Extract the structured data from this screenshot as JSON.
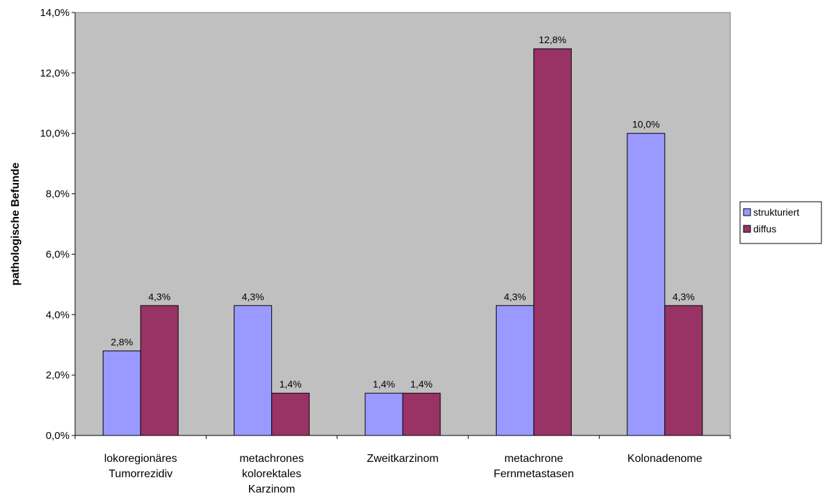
{
  "chart_data": {
    "type": "bar",
    "title": "",
    "xlabel": "",
    "ylabel": "pathologische Befunde",
    "ylim": [
      0,
      14
    ],
    "yticks": [
      "0,0%",
      "2,0%",
      "4,0%",
      "6,0%",
      "8,0%",
      "10,0%",
      "12,0%",
      "14,0%"
    ],
    "categories": [
      [
        "lokoregionäres",
        "Tumorrezidiv"
      ],
      [
        "metachrones",
        "kolorektales",
        "Karzinom"
      ],
      [
        "Zweitkarzinom"
      ],
      [
        "metachrone",
        "Fernmetastasen"
      ],
      [
        "Kolonadenome"
      ]
    ],
    "series": [
      {
        "name": "strukturiert",
        "color": "#9999ff",
        "values": [
          2.8,
          4.3,
          1.4,
          4.3,
          10.0
        ],
        "labels": [
          "2,8%",
          "4,3%",
          "1,4%",
          "4,3%",
          "10,0%"
        ]
      },
      {
        "name": "diffus",
        "color": "#993366",
        "values": [
          4.3,
          1.4,
          1.4,
          12.8,
          4.3
        ],
        "labels": [
          "4,3%",
          "1,4%",
          "1,4%",
          "12,8%",
          "4,3%"
        ]
      }
    ],
    "plot_background": "#c0c0c0",
    "grid": false,
    "legend_position": "right"
  }
}
